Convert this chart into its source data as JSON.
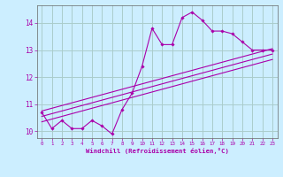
{
  "title": "",
  "xlabel": "Windchill (Refroidissement éolien,°C)",
  "ylabel": "",
  "bg_color": "#cceeff",
  "grid_color": "#aacccc",
  "line_color": "#aa00aa",
  "x_data": [
    0,
    1,
    2,
    3,
    4,
    5,
    6,
    7,
    8,
    9,
    10,
    11,
    12,
    13,
    14,
    15,
    16,
    17,
    18,
    19,
    20,
    21,
    22,
    23
  ],
  "y_main": [
    10.7,
    10.1,
    10.4,
    10.1,
    10.1,
    10.4,
    10.2,
    9.9,
    10.8,
    11.4,
    12.4,
    13.8,
    13.2,
    13.2,
    14.2,
    14.4,
    14.1,
    13.7,
    13.7,
    13.6,
    13.3,
    13.0,
    13.0,
    13.0
  ],
  "trend1_x": [
    0,
    23
  ],
  "trend1_y": [
    10.75,
    13.05
  ],
  "trend2_x": [
    0,
    23
  ],
  "trend2_y": [
    10.55,
    12.85
  ],
  "trend3_x": [
    0,
    23
  ],
  "trend3_y": [
    10.35,
    12.65
  ],
  "xlim": [
    -0.5,
    23.5
  ],
  "ylim": [
    9.75,
    14.65
  ],
  "xticks": [
    0,
    1,
    2,
    3,
    4,
    5,
    6,
    7,
    8,
    9,
    10,
    11,
    12,
    13,
    14,
    15,
    16,
    17,
    18,
    19,
    20,
    21,
    22,
    23
  ],
  "yticks": [
    10,
    11,
    12,
    13,
    14
  ]
}
